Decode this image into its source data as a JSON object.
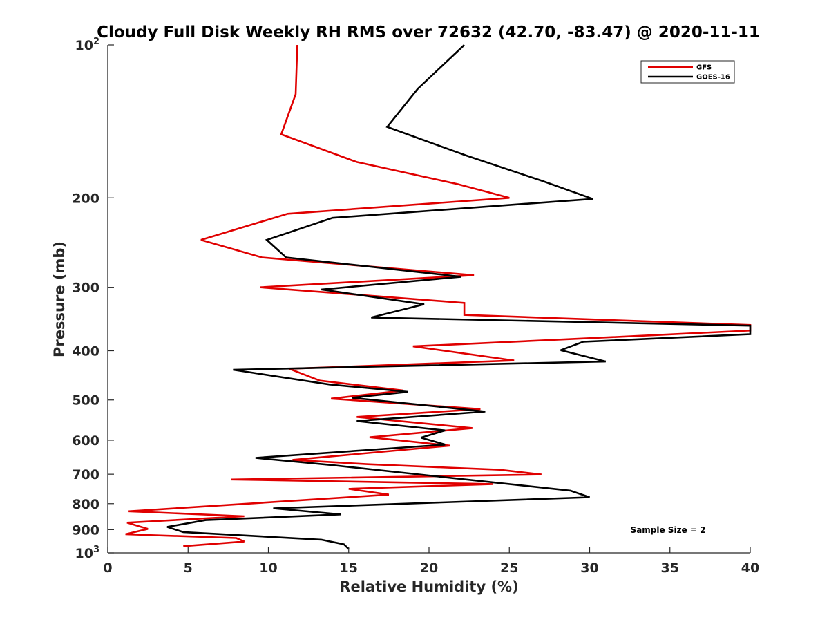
{
  "chart_data": {
    "type": "line",
    "title": "Cloudy Full Disk Weekly RH RMS over 72632 (42.70, -83.47) @ 2020-11-11",
    "xlabel": "Relative Humidity (%)",
    "ylabel": "Pressure (mb)",
    "xlim": [
      0,
      40
    ],
    "ylim": [
      1000,
      100
    ],
    "yscale": "log",
    "xticks": [
      "0",
      "5",
      "10",
      "15",
      "20",
      "25",
      "30",
      "35",
      "40"
    ],
    "yticks": [
      {
        "value": 100,
        "base": "10",
        "exp": "2"
      },
      {
        "value": 200,
        "label": "200"
      },
      {
        "value": 300,
        "label": "300"
      },
      {
        "value": 400,
        "label": "400"
      },
      {
        "value": 500,
        "label": "500"
      },
      {
        "value": 600,
        "label": "600"
      },
      {
        "value": 700,
        "label": "700"
      },
      {
        "value": 800,
        "label": "800"
      },
      {
        "value": 900,
        "label": "900"
      },
      {
        "value": 1000,
        "base": "10",
        "exp": "3"
      }
    ],
    "grid": false,
    "legend_position": "top-right",
    "annotation": "Sample Size = 2",
    "series": [
      {
        "name": "GFS",
        "color": "#e00000",
        "points": [
          [
            11.8,
            100
          ],
          [
            11.7,
            125
          ],
          [
            10.8,
            150
          ],
          [
            15.5,
            170
          ],
          [
            21.8,
            188
          ],
          [
            25,
            200
          ],
          [
            11.2,
            215
          ],
          [
            5.8,
            242
          ],
          [
            9.6,
            262
          ],
          [
            22.8,
            284
          ],
          [
            9.5,
            300
          ],
          [
            22.2,
            322
          ],
          [
            22.2,
            340
          ],
          [
            40,
            356
          ],
          [
            40,
            365
          ],
          [
            28.4,
            380
          ],
          [
            19,
            392
          ],
          [
            25.3,
            418
          ],
          [
            11.3,
            434
          ],
          [
            13.2,
            458
          ],
          [
            18.4,
            479
          ],
          [
            13.9,
            497
          ],
          [
            23.2,
            521
          ],
          [
            15.5,
            540
          ],
          [
            22.7,
            568
          ],
          [
            16.3,
            592
          ],
          [
            21.3,
            615
          ],
          [
            11.5,
            656
          ],
          [
            16.2,
            669
          ],
          [
            24.4,
            686
          ],
          [
            27,
            701
          ],
          [
            7.7,
            717
          ],
          [
            24,
            732
          ],
          [
            15,
            748
          ],
          [
            17.5,
            768
          ],
          [
            1.3,
            828
          ],
          [
            8.5,
            847
          ],
          [
            1.2,
            872
          ],
          [
            2.5,
            897
          ],
          [
            1.1,
            919
          ],
          [
            8,
            935
          ],
          [
            8.5,
            950
          ],
          [
            4.7,
            970
          ]
        ]
      },
      {
        "name": "GOES-16",
        "color": "#000000",
        "points": [
          [
            22.2,
            100
          ],
          [
            19.3,
            122
          ],
          [
            17.4,
            145
          ],
          [
            22.3,
            165
          ],
          [
            27,
            185
          ],
          [
            30.2,
            201
          ],
          [
            14,
            219
          ],
          [
            9.9,
            242
          ],
          [
            11.1,
            262
          ],
          [
            22,
            286
          ],
          [
            13.3,
            303
          ],
          [
            19.7,
            324
          ],
          [
            16.4,
            344
          ],
          [
            40,
            357
          ],
          [
            40,
            371
          ],
          [
            29.6,
            384
          ],
          [
            28.2,
            399
          ],
          [
            31,
            420
          ],
          [
            7.8,
            436
          ],
          [
            13.8,
            466
          ],
          [
            18.7,
            482
          ],
          [
            15.2,
            495
          ],
          [
            23.5,
            527
          ],
          [
            15.5,
            550
          ],
          [
            21,
            574
          ],
          [
            19.5,
            593
          ],
          [
            21,
            612
          ],
          [
            9.2,
            650
          ],
          [
            14,
            672
          ],
          [
            28.8,
            754
          ],
          [
            30,
            777
          ],
          [
            10.3,
            817
          ],
          [
            14.5,
            840
          ],
          [
            6.1,
            862
          ],
          [
            3.7,
            889
          ],
          [
            4.7,
            910
          ],
          [
            13.3,
            942
          ],
          [
            14.7,
            962
          ],
          [
            15,
            983
          ]
        ]
      }
    ]
  }
}
